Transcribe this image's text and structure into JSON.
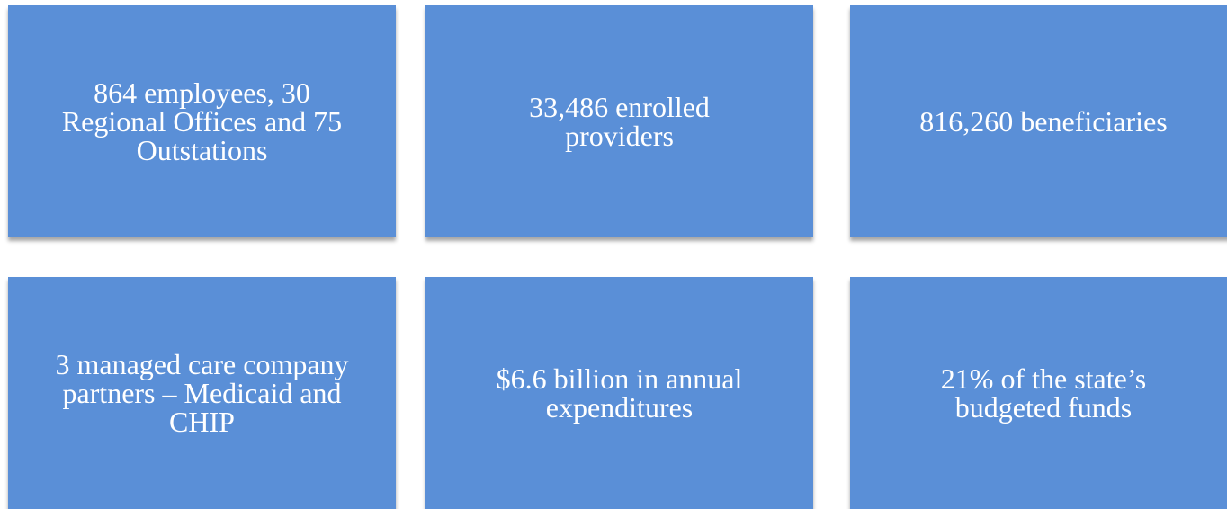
{
  "tiles": [
    {
      "lines": [
        "864 employees, 30",
        "Regional Offices and 75",
        "Outstations"
      ]
    },
    {
      "lines": [
        "33,486 enrolled",
        "providers"
      ]
    },
    {
      "lines": [
        "816,260 beneficiaries"
      ]
    },
    {
      "lines": [
        "3 managed care company",
        "partners – Medicaid and",
        "CHIP"
      ]
    },
    {
      "lines": [
        "$6.6 billion in annual",
        "expenditures"
      ]
    },
    {
      "lines": [
        "21% of the state’s",
        "budgeted funds"
      ]
    }
  ]
}
